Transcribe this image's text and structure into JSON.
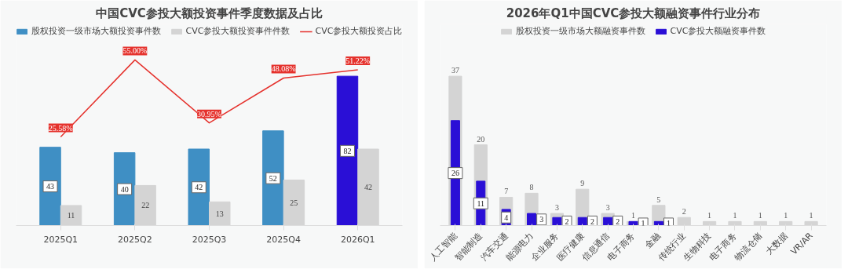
{
  "chart_data": [
    {
      "type": "bar",
      "title": "中国CVC参投大额投资事件季度数据及占比",
      "categories": [
        "2025Q1",
        "2025Q2",
        "2025Q3",
        "2025Q4",
        "2026Q1"
      ],
      "data_labels": true,
      "legend": "top",
      "tick_labels": "x",
      "series": [
        {
          "name": "股权投资一级市场大额投资事件数",
          "color": "#3f8fc4",
          "colors": [
            null,
            null,
            null,
            null,
            "#2a0fd6"
          ],
          "values": [
            43,
            40,
            42,
            52,
            82
          ]
        },
        {
          "name": "CVC参投大额投资事件件数",
          "color": "#d4d4d4",
          "values": [
            11,
            22,
            13,
            25,
            42
          ]
        },
        {
          "name": "CVC参投大额投资占比",
          "type": "line",
          "axis": "y2",
          "color": "#e5322d",
          "values": [
            25.58,
            55.0,
            30.95,
            48.08,
            51.22
          ],
          "value_labels": [
            "25.58%",
            "55.00%",
            "30.95%",
            "48.08%",
            "51.22%"
          ]
        }
      ]
    },
    {
      "type": "bar",
      "title": "2026年Q1中国CVC参投大额融资事件行业分布",
      "categories": [
        "人工智能",
        "智能制造",
        "汽车交通",
        "能源电力",
        "企业服务",
        "医疗健康",
        "信息通信",
        "电子商务",
        "金融",
        "传统行业",
        "生物科技",
        "电子商务",
        "物流仓储",
        "大数据",
        "VR/AR"
      ],
      "data_labels": true,
      "legend": "top",
      "tick_labels": "x",
      "series": [
        {
          "name": "股权投资一级市场大额融资事件数",
          "color": "#d4d4d4",
          "values": [
            37,
            20,
            7,
            8,
            3,
            9,
            3,
            1,
            5,
            2,
            1,
            1,
            1,
            1,
            1
          ]
        },
        {
          "name": "CVC参投大额融资事件数",
          "color": "#2a0fd6",
          "values": [
            26,
            11,
            4,
            3,
            2,
            2,
            2,
            1,
            1,
            null,
            null,
            null,
            null,
            null,
            null
          ]
        }
      ]
    }
  ]
}
